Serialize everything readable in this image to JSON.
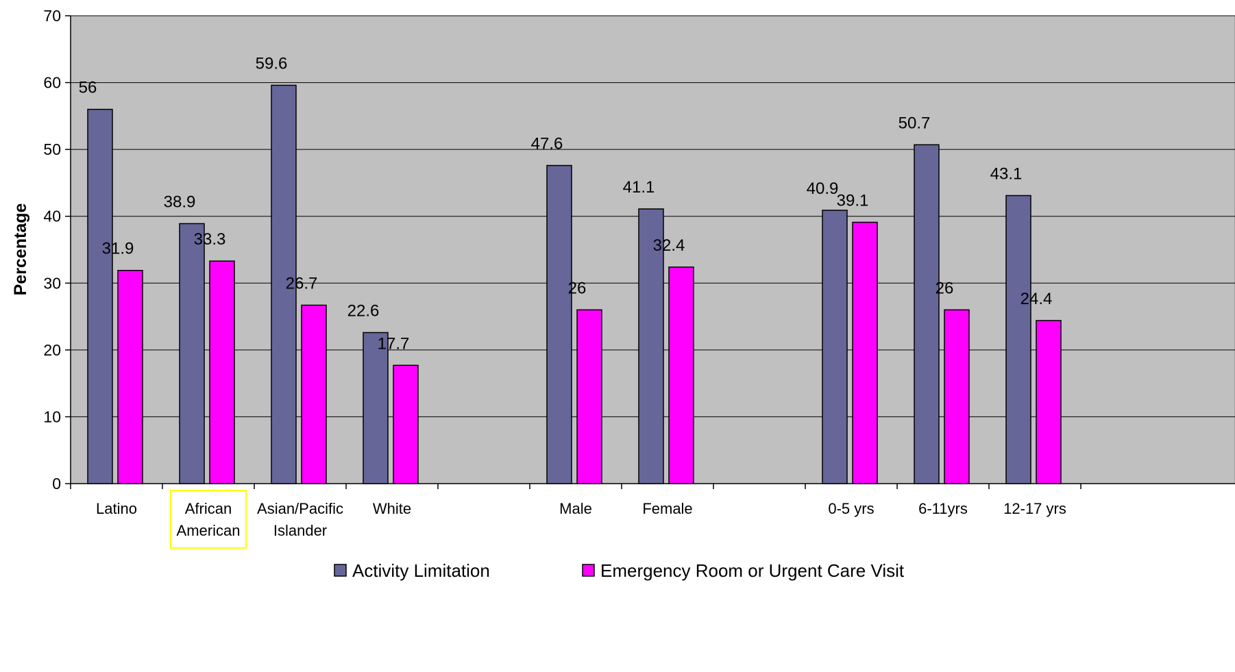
{
  "chart_data": {
    "type": "bar",
    "title": "",
    "xlabel": "",
    "ylabel": "Percentage",
    "ylim": [
      0,
      70
    ],
    "yticks": [
      "0",
      "10",
      "20",
      "30",
      "40",
      "50",
      "60",
      "70"
    ],
    "grid": true,
    "legend_position": "bottom",
    "categories": [
      [
        "Latino"
      ],
      [
        "African",
        "American"
      ],
      [
        "Asian/Pacific",
        "Islander"
      ],
      [
        "White"
      ],
      [],
      [
        "Male"
      ],
      [
        "Female"
      ],
      [],
      [
        "0-5 yrs"
      ],
      [
        "6-11yrs"
      ],
      [
        "12-17 yrs"
      ]
    ],
    "highlighted_category": 1,
    "series": [
      {
        "name": "Activity Limitation",
        "color": "#666699",
        "values": [
          56,
          38.9,
          59.6,
          22.6,
          null,
          47.6,
          41.1,
          null,
          40.9,
          50.7,
          43.1
        ],
        "labels": [
          "56",
          "38.9",
          "59.6",
          "22.6",
          "",
          "47.6",
          "41.1",
          "",
          "40.9",
          "50.7",
          "43.1"
        ]
      },
      {
        "name": "Emergency Room or Urgent Care Visit",
        "color": "#ff00ff",
        "values": [
          31.9,
          33.3,
          26.7,
          17.7,
          null,
          26,
          32.4,
          null,
          39.1,
          26,
          24.4
        ],
        "labels": [
          "31.9",
          "33.3",
          "26.7",
          "17.7",
          "",
          "26",
          "32.4",
          "",
          "39.1",
          "26",
          "24.4"
        ]
      }
    ],
    "colors": {
      "plot_background": "#c0c0c0",
      "gridline": "#000000",
      "highlight_box": "#ffff00"
    }
  }
}
